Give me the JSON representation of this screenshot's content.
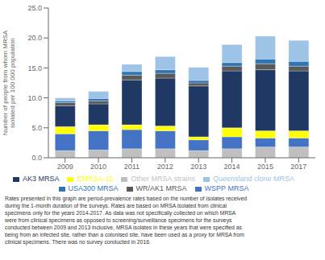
{
  "chart_data": {
    "type": "bar",
    "stacked": true,
    "ylabel": "Number of people from whom MRSA\nisolated per 100 000 population",
    "categories": [
      "2009",
      "2010",
      "2011",
      "2012",
      "2013",
      "2014",
      "2015",
      "2017"
    ],
    "series": [
      {
        "name": "Other MRSA strains",
        "color": "#bfbfbf",
        "values": [
          1.2,
          1.3,
          1.5,
          1.5,
          1.2,
          1.5,
          1.8,
          1.8
        ]
      },
      {
        "name": "WSPP MRSA",
        "color": "#4472c4",
        "values": [
          2.8,
          3.2,
          3.2,
          3.0,
          1.8,
          2.0,
          1.5,
          1.5
        ]
      },
      {
        "name": "EMRSA-15",
        "color": "#ffff00",
        "values": [
          1.2,
          1.0,
          0.8,
          0.8,
          0.5,
          1.5,
          1.2,
          1.2
        ]
      },
      {
        "name": "AK3 MRSA",
        "color": "#1f3864",
        "values": [
          3.5,
          3.5,
          7.5,
          8.0,
          8.5,
          9.5,
          10.2,
          10.0
        ]
      },
      {
        "name": "WR/AK1 MRSA",
        "color": "#595959",
        "values": [
          0.5,
          0.5,
          0.8,
          0.8,
          0.5,
          0.8,
          1.0,
          0.8
        ]
      },
      {
        "name": "USA300 MRSA",
        "color": "#2e75b6",
        "values": [
          0.3,
          0.4,
          0.6,
          0.6,
          0.4,
          0.6,
          0.8,
          0.8
        ]
      },
      {
        "name": "Queensland clone MRSA",
        "color": "#9dc3e6",
        "values": [
          0.5,
          1.2,
          1.2,
          2.2,
          2.2,
          3.0,
          3.8,
          3.5
        ]
      }
    ],
    "ylim": [
      0,
      25
    ],
    "yticks": [
      {
        "value": 0,
        "label": "0.0"
      },
      {
        "value": 5,
        "label": "5.0"
      },
      {
        "value": 10,
        "label": "10.0"
      },
      {
        "value": 15,
        "label": "15.0"
      },
      {
        "value": 20,
        "label": "20.0"
      },
      {
        "value": 25,
        "label": "25.0"
      }
    ],
    "grid": false,
    "legend": "bottom",
    "annotations": [
      "Rates presented in this graph are period-prevalence rates based on the number of isolates received\nduring the 1-month duration of the surveys. Rates are based on MRSA isolated from clinical\nspecimens only for the years 2014-2017. As data was not specifically collected on which MRSA\nwere from clinical specimens as opposed to screening/surveillance specimens for the surveys\nconducted between 2009 and 2013 inclusive, MRSA isolates in these years that were specified as\nbeing from an infected site, rather than a colonised site, have been used as a proxy for MRSA from\nclinical specimens. There was no survey conducted in 2016."
    ]
  }
}
